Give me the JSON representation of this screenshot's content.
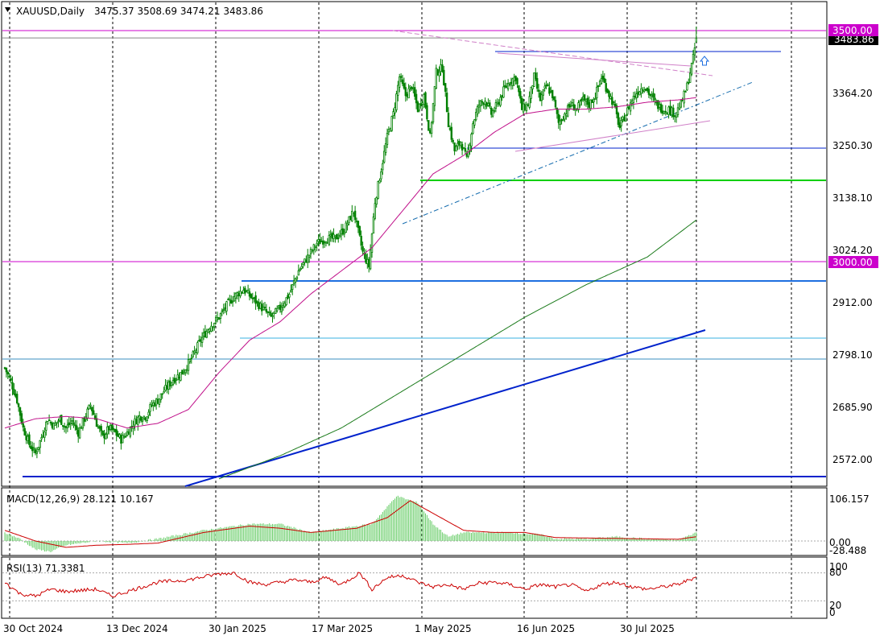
{
  "header": {
    "symbol_label": "XAUUSD,Daily",
    "ohlc": "3475.37 3508.69 3474.21 3483.86"
  },
  "colors": {
    "background": "#ffffff",
    "grid": "#000000",
    "candle": "#008000",
    "ma_magenta": "#c0108a",
    "ma_green": "#1a7a1a",
    "trend_blue": "#0022cc",
    "level_blue": "#1e6fe0",
    "level_green": "#00d000",
    "level_magenta": "#cc00cc",
    "macd_hist": "#66cc66",
    "macd_signal": "#cc0000",
    "rsi_line": "#cc0000"
  },
  "price_axis": {
    "ticks": [
      "3364.20",
      "3250.30",
      "3138.10",
      "3024.20",
      "2912.00",
      "2798.10",
      "2685.90",
      "2572.00"
    ],
    "current_price_label": "3483.86",
    "level_labels": [
      "3500.00",
      "3000.00"
    ]
  },
  "macd_panel": {
    "label": "MACD(12,26,9) 28.121 10.167",
    "ticks": [
      "106.157",
      "0.00",
      "-28.488"
    ]
  },
  "rsi_panel": {
    "label": "RSI(13) 71.3381",
    "ticks": [
      "100",
      "80",
      "20",
      "0"
    ]
  },
  "time_axis": {
    "labels": [
      "30 Oct 2024",
      "13 Dec 2024",
      "30 Jan 2025",
      "17 Mar 2025",
      "1 May 2025",
      "16 Jun 2025",
      "30 Jul 2025"
    ]
  },
  "chart_data": {
    "type": "candlestick",
    "title": "XAUUSD,Daily",
    "ohlc_last": {
      "open": 3475.37,
      "high": 3508.69,
      "low": 3474.21,
      "close": 3483.86
    },
    "x_ticks": [
      "30 Oct 2024",
      "13 Dec 2024",
      "30 Jan 2025",
      "17 Mar 2025",
      "1 May 2025",
      "16 Jun 2025",
      "30 Jul 2025"
    ],
    "ylim": [
      2530,
      3540
    ],
    "anchors": [
      [
        0,
        2770
      ],
      [
        4,
        2740
      ],
      [
        8,
        2700
      ],
      [
        12,
        2640
      ],
      [
        16,
        2605
      ],
      [
        20,
        2585
      ],
      [
        24,
        2620
      ],
      [
        28,
        2660
      ],
      [
        32,
        2645
      ],
      [
        36,
        2660
      ],
      [
        40,
        2640
      ],
      [
        44,
        2655
      ],
      [
        48,
        2630
      ],
      [
        52,
        2660
      ],
      [
        56,
        2690
      ],
      [
        60,
        2650
      ],
      [
        64,
        2620
      ],
      [
        68,
        2640
      ],
      [
        72,
        2630
      ],
      [
        76,
        2615
      ],
      [
        80,
        2630
      ],
      [
        84,
        2650
      ],
      [
        88,
        2665
      ],
      [
        92,
        2665
      ],
      [
        96,
        2690
      ],
      [
        100,
        2700
      ],
      [
        104,
        2720
      ],
      [
        110,
        2745
      ],
      [
        116,
        2760
      ],
      [
        122,
        2790
      ],
      [
        128,
        2830
      ],
      [
        134,
        2860
      ],
      [
        140,
        2880
      ],
      [
        146,
        2910
      ],
      [
        150,
        2925
      ],
      [
        156,
        2940
      ],
      [
        162,
        2920
      ],
      [
        168,
        2900
      ],
      [
        174,
        2880
      ],
      [
        180,
        2900
      ],
      [
        186,
        2930
      ],
      [
        192,
        2980
      ],
      [
        198,
        3010
      ],
      [
        204,
        3040
      ],
      [
        210,
        3050
      ],
      [
        216,
        3050
      ],
      [
        222,
        3070
      ],
      [
        228,
        3110
      ],
      [
        234,
        3020
      ],
      [
        238,
        2990
      ],
      [
        242,
        3130
      ],
      [
        246,
        3200
      ],
      [
        250,
        3270
      ],
      [
        254,
        3320
      ],
      [
        258,
        3400
      ],
      [
        262,
        3360
      ],
      [
        266,
        3380
      ],
      [
        270,
        3330
      ],
      [
        274,
        3360
      ],
      [
        278,
        3270
      ],
      [
        282,
        3410
      ],
      [
        286,
        3420
      ],
      [
        290,
        3300
      ],
      [
        294,
        3240
      ],
      [
        298,
        3260
      ],
      [
        302,
        3220
      ],
      [
        306,
        3300
      ],
      [
        310,
        3340
      ],
      [
        314,
        3350
      ],
      [
        318,
        3320
      ],
      [
        322,
        3340
      ],
      [
        326,
        3370
      ],
      [
        330,
        3390
      ],
      [
        334,
        3400
      ],
      [
        338,
        3330
      ],
      [
        342,
        3340
      ],
      [
        346,
        3400
      ],
      [
        350,
        3350
      ],
      [
        354,
        3380
      ],
      [
        358,
        3360
      ],
      [
        362,
        3300
      ],
      [
        366,
        3320
      ],
      [
        370,
        3340
      ],
      [
        374,
        3330
      ],
      [
        378,
        3350
      ],
      [
        382,
        3340
      ],
      [
        386,
        3360
      ],
      [
        390,
        3400
      ],
      [
        394,
        3370
      ],
      [
        398,
        3340
      ],
      [
        402,
        3290
      ],
      [
        406,
        3320
      ],
      [
        410,
        3350
      ],
      [
        414,
        3370
      ],
      [
        418,
        3380
      ],
      [
        422,
        3360
      ],
      [
        426,
        3340
      ],
      [
        430,
        3330
      ],
      [
        434,
        3330
      ],
      [
        438,
        3320
      ],
      [
        442,
        3340
      ],
      [
        446,
        3380
      ],
      [
        450,
        3440
      ],
      [
        452,
        3484
      ]
    ],
    "ma_fast_anchors": [
      [
        0,
        2640
      ],
      [
        20,
        2660
      ],
      [
        40,
        2665
      ],
      [
        60,
        2660
      ],
      [
        80,
        2640
      ],
      [
        100,
        2650
      ],
      [
        120,
        2680
      ],
      [
        140,
        2760
      ],
      [
        160,
        2830
      ],
      [
        180,
        2870
      ],
      [
        200,
        2930
      ],
      [
        220,
        2980
      ],
      [
        240,
        3030
      ],
      [
        260,
        3110
      ],
      [
        280,
        3190
      ],
      [
        300,
        3230
      ],
      [
        320,
        3280
      ],
      [
        340,
        3320
      ],
      [
        360,
        3330
      ],
      [
        380,
        3330
      ],
      [
        400,
        3335
      ],
      [
        420,
        3345
      ],
      [
        440,
        3350
      ],
      [
        452,
        3355
      ]
    ],
    "ma_slow_anchors": [
      [
        140,
        2530
      ],
      [
        180,
        2580
      ],
      [
        220,
        2640
      ],
      [
        260,
        2720
      ],
      [
        300,
        2800
      ],
      [
        340,
        2880
      ],
      [
        380,
        2950
      ],
      [
        420,
        3010
      ],
      [
        452,
        3090
      ]
    ],
    "levels": [
      {
        "price": 3500.0,
        "label": "3500.00",
        "color": "#cc00cc"
      },
      {
        "price": 3000.0,
        "label": "3000.00",
        "color": "#cc00cc"
      }
    ],
    "macd": {
      "hist_anchors": [
        [
          0,
          20
        ],
        [
          10,
          5
        ],
        [
          20,
          -20
        ],
        [
          30,
          -25
        ],
        [
          40,
          -10
        ],
        [
          60,
          0
        ],
        [
          80,
          -5
        ],
        [
          100,
          5
        ],
        [
          130,
          25
        ],
        [
          160,
          40
        ],
        [
          180,
          40
        ],
        [
          200,
          20
        ],
        [
          220,
          30
        ],
        [
          240,
          40
        ],
        [
          250,
          80
        ],
        [
          256,
          106
        ],
        [
          270,
          90
        ],
        [
          280,
          40
        ],
        [
          290,
          10
        ],
        [
          300,
          20
        ],
        [
          330,
          20
        ],
        [
          350,
          15
        ],
        [
          360,
          5
        ],
        [
          380,
          5
        ],
        [
          400,
          10
        ],
        [
          420,
          5
        ],
        [
          440,
          2
        ],
        [
          452,
          20
        ]
      ],
      "signal_anchors": [
        [
          0,
          25
        ],
        [
          20,
          0
        ],
        [
          40,
          -15
        ],
        [
          60,
          -10
        ],
        [
          80,
          -8
        ],
        [
          100,
          -5
        ],
        [
          130,
          20
        ],
        [
          160,
          35
        ],
        [
          180,
          30
        ],
        [
          200,
          20
        ],
        [
          230,
          30
        ],
        [
          250,
          55
        ],
        [
          265,
          95
        ],
        [
          280,
          65
        ],
        [
          300,
          25
        ],
        [
          320,
          20
        ],
        [
          340,
          20
        ],
        [
          360,
          8
        ],
        [
          400,
          6
        ],
        [
          440,
          4
        ],
        [
          452,
          10
        ]
      ],
      "ylim": [
        -28.488,
        106.157
      ]
    },
    "rsi": {
      "anchors": [
        [
          0,
          60
        ],
        [
          10,
          35
        ],
        [
          20,
          30
        ],
        [
          30,
          45
        ],
        [
          40,
          40
        ],
        [
          60,
          45
        ],
        [
          70,
          30
        ],
        [
          80,
          40
        ],
        [
          100,
          60
        ],
        [
          120,
          65
        ],
        [
          140,
          78
        ],
        [
          150,
          80
        ],
        [
          160,
          60
        ],
        [
          170,
          55
        ],
        [
          180,
          60
        ],
        [
          190,
          65
        ],
        [
          200,
          60
        ],
        [
          210,
          70
        ],
        [
          220,
          55
        ],
        [
          232,
          80
        ],
        [
          240,
          45
        ],
        [
          250,
          70
        ],
        [
          260,
          75
        ],
        [
          270,
          60
        ],
        [
          280,
          50
        ],
        [
          290,
          55
        ],
        [
          300,
          45
        ],
        [
          310,
          58
        ],
        [
          320,
          60
        ],
        [
          330,
          55
        ],
        [
          340,
          45
        ],
        [
          350,
          55
        ],
        [
          360,
          50
        ],
        [
          370,
          55
        ],
        [
          380,
          40
        ],
        [
          390,
          55
        ],
        [
          400,
          60
        ],
        [
          410,
          50
        ],
        [
          420,
          45
        ],
        [
          430,
          50
        ],
        [
          440,
          55
        ],
        [
          452,
          71.34
        ]
      ],
      "levels": [
        80,
        20
      ],
      "ylim": [
        0,
        100
      ]
    }
  }
}
